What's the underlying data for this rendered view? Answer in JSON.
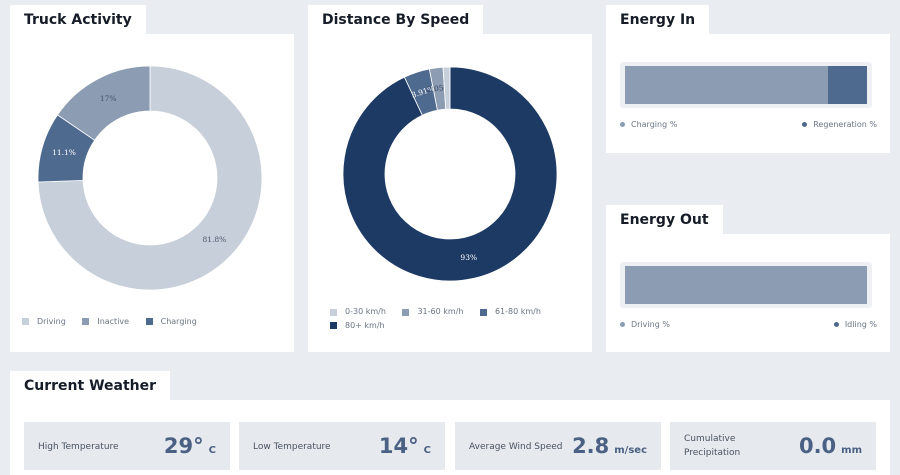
{
  "truck_activity": {
    "title": "Truck Activity",
    "legend": [
      {
        "label": "Driving",
        "color": "#c7cfda"
      },
      {
        "label": "Inactive",
        "color": "#8b9cb3"
      },
      {
        "label": "Charging",
        "color": "#4f6a8f"
      }
    ],
    "slices": [
      {
        "label": "Driving",
        "value": 81.8,
        "text": "81.8%",
        "color": "#c7cfda"
      },
      {
        "label": "Charging",
        "value": 11.1,
        "text": "11.1%",
        "color": "#4f6a8f"
      },
      {
        "label": "Inactive",
        "value": 17,
        "text": "17%",
        "color": "#8b9cb3"
      }
    ]
  },
  "distance_by_speed": {
    "title": "Distance By Speed",
    "legend": [
      {
        "label": "0-30 km/h",
        "color": "#c7cfda"
      },
      {
        "label": "31-60 km/h",
        "color": "#8b9cb3"
      },
      {
        "label": "61-80 km/h",
        "color": "#4f6a8f"
      },
      {
        "label": "80+ km/h",
        "color": "#1c3a64"
      }
    ],
    "slices": [
      {
        "label": "80+ km/h",
        "value": 93,
        "text": "93%",
        "color": "#1c3a64"
      },
      {
        "label": "61-80 km/h",
        "value": 3.91,
        "text": "3.91%",
        "color": "#4f6a8f"
      },
      {
        "label": "31-60 km/h",
        "value": 2.05,
        "text": "2.05%",
        "color": "#8b9cb3"
      },
      {
        "label": "0-30 km/h",
        "value": 1.04,
        "text": "",
        "color": "#c7cfda"
      }
    ]
  },
  "energy_in": {
    "title": "Energy In",
    "left_label": "Charging %",
    "right_label": "Regeneration %",
    "charging_fraction": 0.84,
    "colors": {
      "charging": "#8b9cb3",
      "regeneration": "#4f6a8f"
    }
  },
  "energy_out": {
    "title": "Energy Out",
    "left_label": "Driving %",
    "right_label": "Idling %",
    "driving_fraction": 1.0,
    "colors": {
      "driving": "#8b9cb3",
      "idling": "#4f6a8f"
    }
  },
  "weather": {
    "title": "Current Weather",
    "tiles": [
      {
        "label": "High Temperature",
        "value": "29°",
        "unit": "C"
      },
      {
        "label": "Low Temperature",
        "value": "14°",
        "unit": "C"
      },
      {
        "label": "Average Wind Speed",
        "value": "2.8",
        "unit": "m/sec"
      },
      {
        "label": "Cumulative Precipitation",
        "value": "0.0",
        "unit": "mm"
      }
    ]
  }
}
